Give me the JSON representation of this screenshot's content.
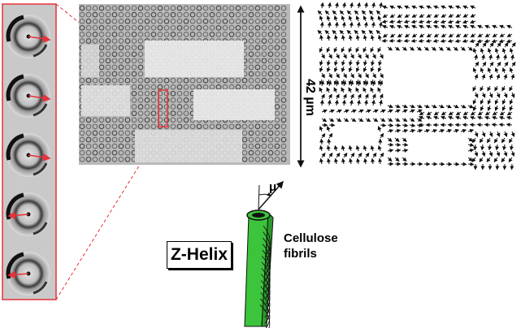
{
  "labels": {
    "scale": "42 µm",
    "helix": "Z-Helix",
    "fibrils_line1": "Cellulose",
    "fibrils_line2": "fibrils",
    "angle_symbol": "μ"
  },
  "colors": {
    "highlight": "#e8313a",
    "cell_wall": "#3cc43c",
    "ink": "#111111"
  },
  "panels": {
    "inset_patterns": 5,
    "inset_arrow_directions": [
      "right",
      "right",
      "right",
      "left",
      "left"
    ]
  }
}
